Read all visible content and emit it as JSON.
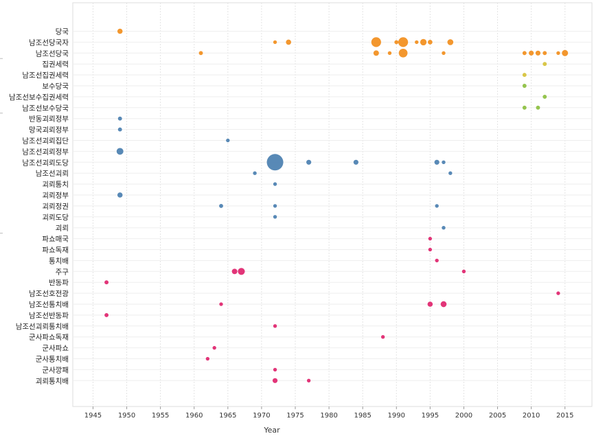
{
  "chart_data": {
    "type": "scatter",
    "title": "",
    "xlabel": "Year",
    "ylabel": "",
    "xlim": [
      1942,
      2019
    ],
    "x_ticks": [
      1945,
      1950,
      1955,
      1960,
      1965,
      1970,
      1975,
      1980,
      1985,
      1990,
      1995,
      2000,
      2005,
      2010,
      2015
    ],
    "grid": true,
    "legend": "none",
    "size_encoding": "bubble area = count",
    "colors": {
      "orange": "#f28e1c",
      "olive": "#8cbf3f",
      "yellow": "#d6c23a",
      "blue": "#4a7fb0",
      "pink": "#e0246c"
    },
    "categories": [
      {
        "label": "당국",
        "color": "orange",
        "points": [
          {
            "x": 1949,
            "s": 1
          }
        ]
      },
      {
        "label": "남조선당국자",
        "color": "orange",
        "points": [
          {
            "x": 1972,
            "s": 0.5
          },
          {
            "x": 1974,
            "s": 1
          },
          {
            "x": 1987,
            "s": 3.5
          },
          {
            "x": 1990,
            "s": 0.6
          },
          {
            "x": 1991,
            "s": 3.5
          },
          {
            "x": 1993,
            "s": 0.5
          },
          {
            "x": 1994,
            "s": 1.5
          },
          {
            "x": 1995,
            "s": 0.8
          },
          {
            "x": 1998,
            "s": 1.3
          }
        ]
      },
      {
        "label": "남조선당국",
        "color": "orange",
        "points": [
          {
            "x": 1961,
            "s": 0.6
          },
          {
            "x": 1987,
            "s": 1.1
          },
          {
            "x": 1989,
            "s": 0.5
          },
          {
            "x": 1991,
            "s": 2.8
          },
          {
            "x": 1997,
            "s": 0.5
          },
          {
            "x": 2009,
            "s": 0.6
          },
          {
            "x": 2010,
            "s": 0.9
          },
          {
            "x": 2011,
            "s": 0.9
          },
          {
            "x": 2012,
            "s": 0.6
          },
          {
            "x": 2014,
            "s": 0.5
          },
          {
            "x": 2015,
            "s": 1.4
          }
        ]
      },
      {
        "label": "집권세력",
        "color": "yellow",
        "points": [
          {
            "x": 2012,
            "s": 0.6
          }
        ]
      },
      {
        "label": "남조선집권세력",
        "color": "yellow",
        "points": [
          {
            "x": 2009,
            "s": 0.6
          }
        ]
      },
      {
        "label": "보수당국",
        "color": "olive",
        "points": [
          {
            "x": 2009,
            "s": 0.6
          }
        ]
      },
      {
        "label": "남조선보수집권세력",
        "color": "olive",
        "points": [
          {
            "x": 2012,
            "s": 0.6
          }
        ]
      },
      {
        "label": "남조선보수당국",
        "color": "olive",
        "points": [
          {
            "x": 2009,
            "s": 0.6
          },
          {
            "x": 2011,
            "s": 0.6
          }
        ]
      },
      {
        "label": "반동괴뢰정부",
        "color": "blue",
        "points": [
          {
            "x": 1949,
            "s": 0.6
          }
        ]
      },
      {
        "label": "망국괴뢰정부",
        "color": "blue",
        "points": [
          {
            "x": 1949,
            "s": 0.6
          }
        ]
      },
      {
        "label": "남조선괴뢰집단",
        "color": "blue",
        "points": [
          {
            "x": 1965,
            "s": 0.5
          }
        ]
      },
      {
        "label": "남조선괴뢰정부",
        "color": "blue",
        "points": [
          {
            "x": 1949,
            "s": 1.7
          }
        ]
      },
      {
        "label": "남조선괴뢰도당",
        "color": "blue",
        "points": [
          {
            "x": 1972,
            "s": 10
          },
          {
            "x": 1977,
            "s": 0.9
          },
          {
            "x": 1984,
            "s": 0.9
          },
          {
            "x": 1996,
            "s": 0.9
          },
          {
            "x": 1997,
            "s": 0.5
          }
        ]
      },
      {
        "label": "남조선괴뢰",
        "color": "blue",
        "points": [
          {
            "x": 1969,
            "s": 0.5
          },
          {
            "x": 1998,
            "s": 0.5
          }
        ]
      },
      {
        "label": "괴뢰통치",
        "color": "blue",
        "points": [
          {
            "x": 1972,
            "s": 0.5
          }
        ]
      },
      {
        "label": "괴뢰정부",
        "color": "blue",
        "points": [
          {
            "x": 1949,
            "s": 1
          }
        ]
      },
      {
        "label": "괴뢰정권",
        "color": "blue",
        "points": [
          {
            "x": 1964,
            "s": 0.6
          },
          {
            "x": 1972,
            "s": 0.5
          },
          {
            "x": 1996,
            "s": 0.5
          }
        ]
      },
      {
        "label": "괴뢰도당",
        "color": "blue",
        "points": [
          {
            "x": 1972,
            "s": 0.5
          }
        ]
      },
      {
        "label": "괴뢰",
        "color": "blue",
        "points": [
          {
            "x": 1997,
            "s": 0.5
          }
        ]
      },
      {
        "label": "파쇼매국",
        "color": "pink",
        "points": [
          {
            "x": 1995,
            "s": 0.5
          }
        ]
      },
      {
        "label": "파쇼독재",
        "color": "pink",
        "points": [
          {
            "x": 1995,
            "s": 0.5
          }
        ]
      },
      {
        "label": "통치배",
        "color": "pink",
        "points": [
          {
            "x": 1996,
            "s": 0.5
          }
        ]
      },
      {
        "label": "주구",
        "color": "pink",
        "points": [
          {
            "x": 1966,
            "s": 1.1
          },
          {
            "x": 1967,
            "s": 1.8
          },
          {
            "x": 2000,
            "s": 0.5
          }
        ]
      },
      {
        "label": "반동파",
        "color": "pink",
        "points": [
          {
            "x": 1947,
            "s": 0.6
          }
        ]
      },
      {
        "label": "남조선호전광",
        "color": "pink",
        "points": [
          {
            "x": 2014,
            "s": 0.5
          }
        ]
      },
      {
        "label": "남조선통치배",
        "color": "pink",
        "points": [
          {
            "x": 1964,
            "s": 0.5
          },
          {
            "x": 1995,
            "s": 1
          },
          {
            "x": 1997,
            "s": 1.3
          }
        ]
      },
      {
        "label": "남조선반동파",
        "color": "pink",
        "points": [
          {
            "x": 1947,
            "s": 0.6
          }
        ]
      },
      {
        "label": "남조선괴뢰통치배",
        "color": "pink",
        "points": [
          {
            "x": 1972,
            "s": 0.5
          }
        ]
      },
      {
        "label": "군사파쇼독재",
        "color": "pink",
        "points": [
          {
            "x": 1988,
            "s": 0.5
          }
        ]
      },
      {
        "label": "군사파쇼",
        "color": "pink",
        "points": [
          {
            "x": 1963,
            "s": 0.5
          }
        ]
      },
      {
        "label": "군사통치배",
        "color": "pink",
        "points": [
          {
            "x": 1962,
            "s": 0.5
          }
        ]
      },
      {
        "label": "군사깡패",
        "color": "pink",
        "points": [
          {
            "x": 1972,
            "s": 0.5
          }
        ]
      },
      {
        "label": "괴뢰통치배",
        "color": "pink",
        "points": [
          {
            "x": 1972,
            "s": 0.9
          },
          {
            "x": 1977,
            "s": 0.5
          }
        ]
      }
    ]
  }
}
